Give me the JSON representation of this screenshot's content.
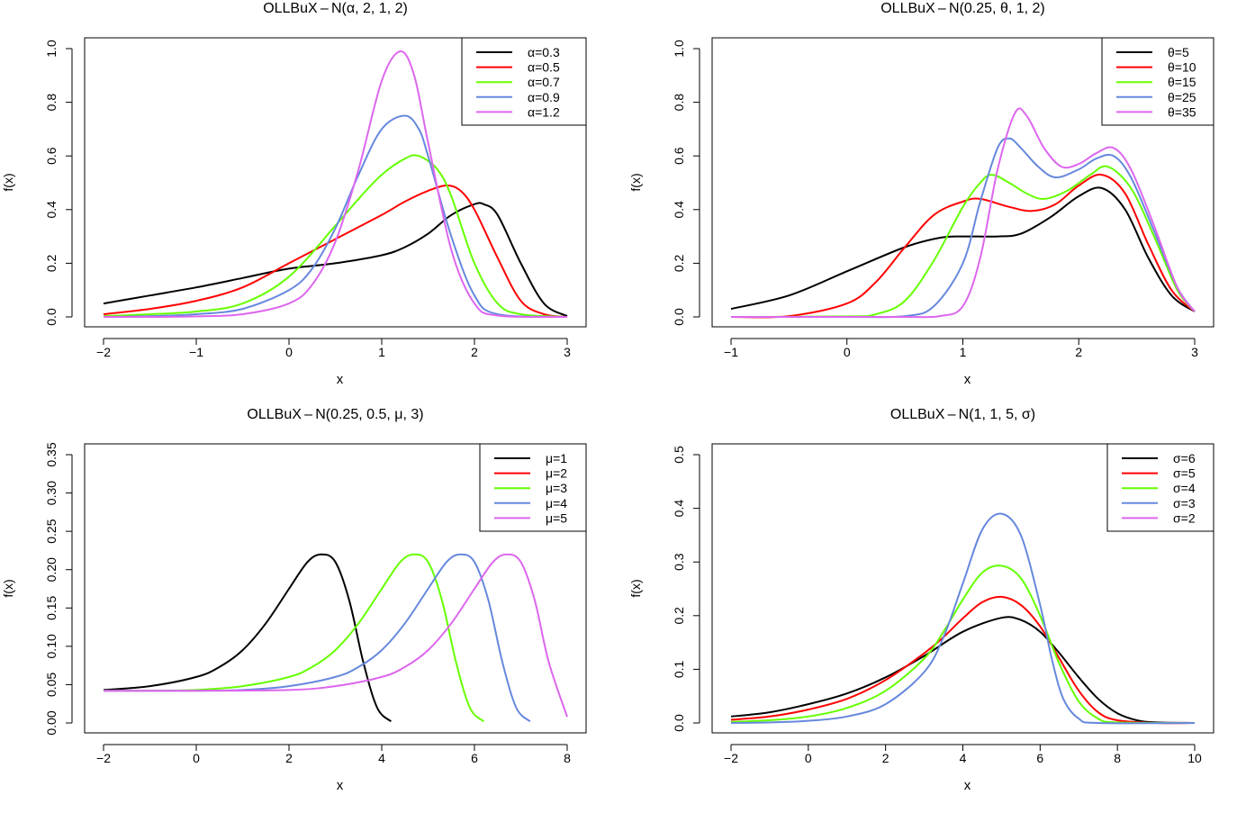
{
  "figure": {
    "panels": [
      {
        "title": "OLLBuX – N(α, 2, 1, 2)",
        "xlabel": "x",
        "ylabel": "f(x)"
      },
      {
        "title": "OLLBuX – N(0.25, θ, 1, 2)",
        "xlabel": "x",
        "ylabel": "f(x)"
      },
      {
        "title": "OLLBuX – N(0.25, 0.5, μ, 3)",
        "xlabel": "x",
        "ylabel": "f(x)"
      },
      {
        "title": "OLLBuX – N(1, 1, 5, σ)",
        "xlabel": "x",
        "ylabel": "f(x)"
      }
    ]
  },
  "chart_data": [
    {
      "type": "line",
      "title": "OLLBuX – N(α, 2, 1, 2)",
      "xlabel": "x",
      "ylabel": "f(x)",
      "xlim": [
        -2,
        3
      ],
      "ylim": [
        0,
        1.0
      ],
      "xticks": [
        -2,
        -1,
        0,
        1,
        2,
        3
      ],
      "yticks": [
        0.0,
        0.2,
        0.4,
        0.6,
        0.8,
        1.0
      ],
      "xticklabels": [
        "−2",
        "−1",
        "0",
        "1",
        "2",
        "3"
      ],
      "yticklabels": [
        "0.0",
        "0.2",
        "0.4",
        "0.6",
        "0.8",
        "1.0"
      ],
      "grid": false,
      "legend_position": "top-right",
      "series": [
        {
          "name": "α=0.3",
          "color": "#000000",
          "x": [
            -2,
            -1.5,
            -1,
            -0.5,
            0,
            0.5,
            1,
            1.25,
            1.5,
            1.75,
            2,
            2.1,
            2.25,
            2.5,
            2.75,
            3
          ],
          "y": [
            0.05,
            0.08,
            0.11,
            0.145,
            0.18,
            0.2,
            0.23,
            0.26,
            0.31,
            0.38,
            0.42,
            0.42,
            0.38,
            0.2,
            0.05,
            0.003
          ]
        },
        {
          "name": "α=0.5",
          "color": "#ff0000",
          "x": [
            -2,
            -1.5,
            -1,
            -0.5,
            0,
            0.5,
            1,
            1.25,
            1.5,
            1.7,
            1.85,
            2,
            2.25,
            2.5,
            2.75,
            3
          ],
          "y": [
            0.01,
            0.03,
            0.06,
            0.11,
            0.2,
            0.29,
            0.38,
            0.43,
            0.47,
            0.49,
            0.47,
            0.4,
            0.22,
            0.06,
            0.01,
            0
          ]
        },
        {
          "name": "α=0.7",
          "color": "#66ff00",
          "x": [
            -2,
            -1.5,
            -1,
            -0.5,
            0,
            0.5,
            0.75,
            1,
            1.25,
            1.4,
            1.6,
            1.75,
            2,
            2.25,
            2.5,
            3
          ],
          "y": [
            0.003,
            0.01,
            0.02,
            0.05,
            0.15,
            0.34,
            0.44,
            0.53,
            0.59,
            0.6,
            0.55,
            0.45,
            0.2,
            0.05,
            0.01,
            0
          ]
        },
        {
          "name": "α=0.9",
          "color": "#6688dd",
          "x": [
            -2,
            -1.5,
            -1,
            -0.5,
            0,
            0.25,
            0.5,
            0.75,
            1,
            1.25,
            1.4,
            1.5,
            1.75,
            2,
            2.25,
            3
          ],
          "y": [
            0,
            0.003,
            0.01,
            0.03,
            0.1,
            0.18,
            0.33,
            0.53,
            0.7,
            0.75,
            0.7,
            0.6,
            0.3,
            0.08,
            0.01,
            0
          ]
        },
        {
          "name": "α=1.2",
          "color": "#dd66ee",
          "x": [
            -2,
            -1.5,
            -1,
            -0.5,
            0,
            0.25,
            0.5,
            0.75,
            1,
            1.2,
            1.35,
            1.5,
            1.75,
            2,
            2.25,
            3
          ],
          "y": [
            0,
            0,
            0.002,
            0.01,
            0.05,
            0.12,
            0.28,
            0.55,
            0.88,
            0.99,
            0.9,
            0.65,
            0.25,
            0.05,
            0.005,
            0
          ]
        }
      ]
    },
    {
      "type": "line",
      "title": "OLLBuX – N(0.25, θ, 1, 2)",
      "xlabel": "x",
      "ylabel": "f(x)",
      "xlim": [
        -1,
        3
      ],
      "ylim": [
        0,
        1.0
      ],
      "xticks": [
        -1,
        0,
        1,
        2,
        3
      ],
      "yticks": [
        0.0,
        0.2,
        0.4,
        0.6,
        0.8,
        1.0
      ],
      "xticklabels": [
        "−1",
        "0",
        "1",
        "2",
        "3"
      ],
      "yticklabels": [
        "0.0",
        "0.2",
        "0.4",
        "0.6",
        "0.8",
        "1.0"
      ],
      "grid": false,
      "legend_position": "top-right",
      "series": [
        {
          "name": "θ=5",
          "color": "#000000",
          "x": [
            -1,
            -0.5,
            0,
            0.5,
            0.8,
            1,
            1.3,
            1.5,
            1.75,
            2,
            2.2,
            2.4,
            2.6,
            2.8,
            3
          ],
          "y": [
            0.03,
            0.08,
            0.17,
            0.26,
            0.295,
            0.3,
            0.3,
            0.31,
            0.37,
            0.45,
            0.48,
            0.4,
            0.22,
            0.08,
            0.02
          ]
        },
        {
          "name": "θ=10",
          "color": "#ff0000",
          "x": [
            -1,
            -0.5,
            0,
            0.25,
            0.5,
            0.75,
            1,
            1.15,
            1.4,
            1.6,
            1.8,
            2,
            2.2,
            2.4,
            2.6,
            2.8,
            3
          ],
          "y": [
            0,
            0.003,
            0.05,
            0.13,
            0.26,
            0.38,
            0.43,
            0.44,
            0.41,
            0.395,
            0.42,
            0.49,
            0.53,
            0.46,
            0.27,
            0.1,
            0.02
          ]
        },
        {
          "name": "θ=15",
          "color": "#66ff00",
          "x": [
            -1,
            0,
            0.25,
            0.5,
            0.75,
            1,
            1.15,
            1.25,
            1.4,
            1.55,
            1.7,
            1.9,
            2.1,
            2.25,
            2.45,
            2.65,
            2.85,
            3
          ],
          "y": [
            0,
            0.002,
            0.01,
            0.06,
            0.21,
            0.41,
            0.5,
            0.53,
            0.5,
            0.46,
            0.44,
            0.47,
            0.53,
            0.56,
            0.48,
            0.3,
            0.1,
            0.02
          ]
        },
        {
          "name": "θ=25",
          "color": "#6688dd",
          "x": [
            -1,
            0,
            0.5,
            0.75,
            1,
            1.15,
            1.3,
            1.4,
            1.5,
            1.65,
            1.8,
            2,
            2.15,
            2.3,
            2.45,
            2.65,
            2.85,
            3
          ],
          "y": [
            0,
            0,
            0.003,
            0.04,
            0.2,
            0.43,
            0.63,
            0.665,
            0.63,
            0.56,
            0.52,
            0.55,
            0.59,
            0.6,
            0.52,
            0.32,
            0.11,
            0.02
          ]
        },
        {
          "name": "θ=35",
          "color": "#dd66ee",
          "x": [
            -1,
            0,
            0.5,
            0.8,
            1,
            1.15,
            1.3,
            1.45,
            1.55,
            1.7,
            1.85,
            2,
            2.15,
            2.3,
            2.45,
            2.65,
            2.85,
            3
          ],
          "y": [
            0,
            0,
            0,
            0.003,
            0.04,
            0.22,
            0.55,
            0.76,
            0.75,
            0.63,
            0.56,
            0.57,
            0.61,
            0.63,
            0.55,
            0.34,
            0.11,
            0.02
          ]
        }
      ]
    },
    {
      "type": "line",
      "title": "OLLBuX – N(0.25, 0.5, μ, 3)",
      "xlabel": "x",
      "ylabel": "f(x)",
      "xlim": [
        -2,
        8
      ],
      "ylim": [
        0,
        0.35
      ],
      "xticks": [
        -2,
        0,
        2,
        4,
        6,
        8
      ],
      "yticks": [
        0.0,
        0.05,
        0.1,
        0.15,
        0.2,
        0.25,
        0.3,
        0.35
      ],
      "xticklabels": [
        "−2",
        "0",
        "2",
        "4",
        "6",
        "8"
      ],
      "yticklabels": [
        "0.00",
        "0.05",
        "0.10",
        "0.15",
        "0.20",
        "0.25",
        "0.30",
        "0.35"
      ],
      "grid": false,
      "legend_position": "top-right",
      "series": [
        {
          "name": "μ=1",
          "color": "#000000",
          "x": [
            -2,
            -1,
            0,
            0.5,
            1,
            1.5,
            2,
            2.4,
            2.7,
            3,
            3.3,
            3.6,
            3.9,
            4.2
          ],
          "y": [
            0.043,
            0.048,
            0.06,
            0.073,
            0.095,
            0.13,
            0.175,
            0.21,
            0.22,
            0.21,
            0.16,
            0.08,
            0.02,
            0.002
          ]
        },
        {
          "name": "μ=2",
          "color": "#ff0000",
          "x": [],
          "y": []
        },
        {
          "name": "μ=3",
          "color": "#66ff00",
          "x": [
            -2,
            -1,
            0,
            1,
            2,
            2.5,
            3,
            3.5,
            4,
            4.4,
            4.7,
            5,
            5.3,
            5.6,
            5.9,
            6.2
          ],
          "y": [
            0.042,
            0.042,
            0.043,
            0.048,
            0.06,
            0.073,
            0.095,
            0.13,
            0.175,
            0.21,
            0.22,
            0.21,
            0.16,
            0.08,
            0.02,
            0.002
          ]
        },
        {
          "name": "μ=4",
          "color": "#6688dd",
          "x": [
            -2,
            0,
            1,
            2,
            3,
            3.5,
            4,
            4.5,
            5,
            5.4,
            5.7,
            6,
            6.3,
            6.6,
            6.9,
            7.2
          ],
          "y": [
            0.042,
            0.042,
            0.043,
            0.048,
            0.06,
            0.073,
            0.095,
            0.13,
            0.175,
            0.21,
            0.22,
            0.21,
            0.16,
            0.08,
            0.02,
            0.002
          ]
        },
        {
          "name": "μ=5",
          "color": "#dd66ee",
          "x": [
            -2,
            0,
            2,
            3,
            4,
            4.5,
            5,
            5.5,
            6,
            6.4,
            6.7,
            7,
            7.3,
            7.6,
            8
          ],
          "y": [
            0.042,
            0.042,
            0.043,
            0.048,
            0.06,
            0.073,
            0.095,
            0.13,
            0.175,
            0.21,
            0.22,
            0.21,
            0.16,
            0.08,
            0.008
          ]
        }
      ]
    },
    {
      "type": "line",
      "title": "OLLBuX – N(1, 1, 5, σ)",
      "xlabel": "x",
      "ylabel": "f(x)",
      "xlim": [
        -2,
        10
      ],
      "ylim": [
        0,
        0.5
      ],
      "xticks": [
        -2,
        0,
        2,
        4,
        6,
        8,
        10
      ],
      "yticks": [
        0.0,
        0.1,
        0.2,
        0.3,
        0.4,
        0.5
      ],
      "xticklabels": [
        "−2",
        "0",
        "2",
        "4",
        "6",
        "8",
        "10"
      ],
      "yticklabels": [
        "0.0",
        "0.1",
        "0.2",
        "0.3",
        "0.4",
        "0.5"
      ],
      "grid": false,
      "legend_position": "top-right",
      "series": [
        {
          "name": "σ=6",
          "color": "#000000",
          "x": [
            -2,
            -1,
            0,
            1,
            2,
            3,
            4,
            5,
            5.5,
            6,
            6.5,
            7,
            7.5,
            8,
            8.5,
            9,
            10
          ],
          "y": [
            0.012,
            0.02,
            0.035,
            0.055,
            0.085,
            0.125,
            0.17,
            0.196,
            0.192,
            0.17,
            0.13,
            0.085,
            0.045,
            0.018,
            0.005,
            0.001,
            0
          ]
        },
        {
          "name": "σ=5",
          "color": "#ff0000",
          "x": [
            -2,
            -1,
            0,
            1,
            2,
            3,
            3.5,
            4,
            4.5,
            5,
            5.5,
            6,
            6.5,
            7,
            7.5,
            8,
            9,
            10
          ],
          "y": [
            0.006,
            0.012,
            0.025,
            0.045,
            0.08,
            0.13,
            0.16,
            0.195,
            0.225,
            0.235,
            0.22,
            0.18,
            0.12,
            0.06,
            0.02,
            0.005,
            0,
            0
          ]
        },
        {
          "name": "σ=4",
          "color": "#66ff00",
          "x": [
            -2,
            -1,
            0,
            1,
            2,
            3,
            3.5,
            4,
            4.5,
            5,
            5.5,
            6,
            6.5,
            7,
            7.5,
            8,
            10
          ],
          "y": [
            0.002,
            0.005,
            0.012,
            0.028,
            0.06,
            0.12,
            0.17,
            0.23,
            0.28,
            0.293,
            0.27,
            0.2,
            0.11,
            0.04,
            0.008,
            0.001,
            0
          ]
        },
        {
          "name": "σ=3",
          "color": "#6688dd",
          "x": [
            -2,
            -1,
            0,
            1,
            2,
            3,
            3.5,
            4,
            4.5,
            5,
            5.5,
            6,
            6.3,
            6.6,
            7,
            7.5,
            10
          ],
          "y": [
            0,
            0.001,
            0.004,
            0.012,
            0.035,
            0.095,
            0.16,
            0.26,
            0.36,
            0.39,
            0.35,
            0.22,
            0.12,
            0.045,
            0.008,
            0,
            0
          ]
        },
        {
          "name": "σ=2",
          "color": "#dd66ee",
          "x": [],
          "y": []
        }
      ]
    }
  ]
}
